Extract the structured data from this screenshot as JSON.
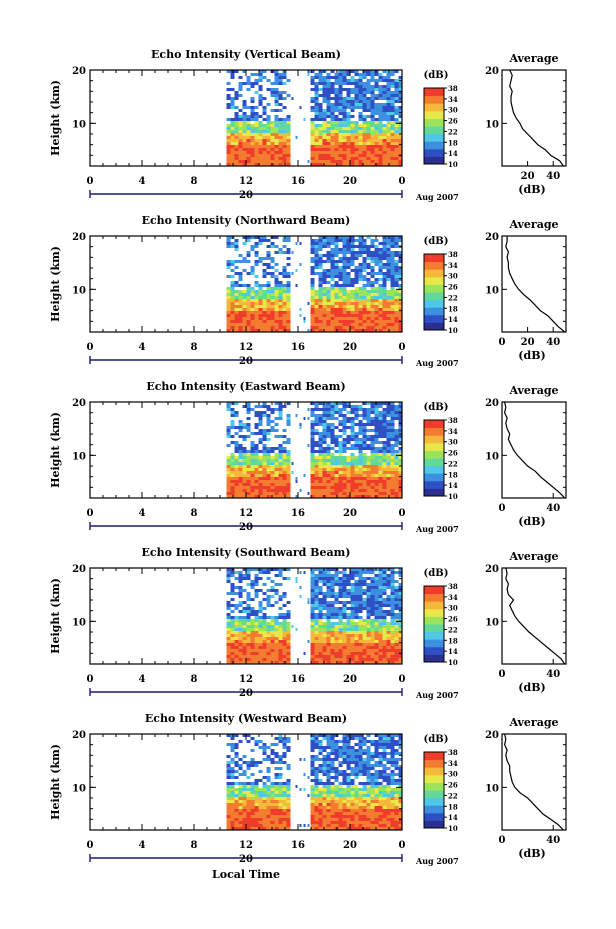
{
  "figure": {
    "xlabel": "Local Time",
    "date_label": "Aug 2007",
    "colorbar_unit": "(dB)",
    "average_title": "Average",
    "average_xlabel": "(dB)"
  },
  "colormap": [
    "#2b2f8f",
    "#2f4fc4",
    "#3d8fe0",
    "#4fc7e8",
    "#62d89a",
    "#9be35a",
    "#e8e84a",
    "#f5b83a",
    "#f47c30",
    "#f03c2a"
  ],
  "chart_data": [
    {
      "type": "heatmap",
      "title": "Echo Intensity (Vertical Beam)",
      "ylabel": "Height (km)",
      "x_ticks": [
        "0",
        "4",
        "8",
        "12",
        "16",
        "20",
        "0"
      ],
      "x_day_label": "20",
      "xlim": [
        0,
        24
      ],
      "ylim": [
        2,
        20
      ],
      "y_ticks": [
        10,
        20
      ],
      "data_start_hour": 10.5,
      "gap_hours": [
        15.5,
        16.9
      ],
      "colorbar": {
        "unit": "(dB)",
        "ticks": [
          "10",
          "14",
          "18",
          "22",
          "26",
          "30",
          "34",
          "38"
        ],
        "range": [
          10,
          38
        ]
      },
      "average": {
        "title": "Average",
        "xlabel": "(dB)",
        "x_ticks": [
          "20",
          "40"
        ],
        "xlim": [
          0,
          50
        ],
        "height_km": [
          2,
          3,
          4,
          5,
          6,
          7,
          8,
          9,
          10,
          11,
          12,
          13,
          14,
          15,
          16,
          17,
          18,
          19,
          20
        ],
        "values_db": [
          48,
          45,
          38,
          34,
          28,
          24,
          20,
          16,
          14,
          11,
          9,
          8,
          7,
          7,
          8,
          6,
          7,
          8,
          6
        ]
      }
    },
    {
      "type": "heatmap",
      "title": "Echo Intensity (Northward Beam)",
      "ylabel": "Height (km)",
      "x_ticks": [
        "0",
        "4",
        "8",
        "12",
        "16",
        "20",
        "0"
      ],
      "x_day_label": "20",
      "xlim": [
        0,
        24
      ],
      "ylim": [
        2,
        20
      ],
      "y_ticks": [
        10,
        20
      ],
      "data_start_hour": 10.5,
      "gap_hours": [
        15.5,
        16.9
      ],
      "colorbar": {
        "unit": "(dB)",
        "ticks": [
          "10",
          "14",
          "18",
          "22",
          "26",
          "30",
          "34",
          "38"
        ],
        "range": [
          10,
          38
        ]
      },
      "average": {
        "title": "Average",
        "xlabel": "(dB)",
        "x_ticks": [
          "0",
          "20",
          "40"
        ],
        "xlim": [
          0,
          50
        ],
        "height_km": [
          2,
          3,
          4,
          5,
          6,
          7,
          8,
          9,
          10,
          11,
          12,
          13,
          14,
          15,
          16,
          17,
          18,
          19,
          20
        ],
        "values_db": [
          49,
          44,
          40,
          36,
          30,
          26,
          22,
          17,
          13,
          10,
          8,
          6,
          5,
          5,
          4,
          5,
          3,
          4,
          4
        ]
      }
    },
    {
      "type": "heatmap",
      "title": "Echo Intensity (Eastward Beam)",
      "ylabel": "Height (km)",
      "x_ticks": [
        "0",
        "4",
        "8",
        "12",
        "16",
        "20",
        "0"
      ],
      "x_day_label": "20",
      "xlim": [
        0,
        24
      ],
      "ylim": [
        2,
        20
      ],
      "y_ticks": [
        10,
        20
      ],
      "data_start_hour": 10.5,
      "gap_hours": [
        15.5,
        16.9
      ],
      "colorbar": {
        "unit": "(dB)",
        "ticks": [
          "10",
          "14",
          "18",
          "22",
          "26",
          "30",
          "34",
          "38"
        ],
        "range": [
          10,
          38
        ]
      },
      "average": {
        "title": "Average",
        "xlabel": "(dB)",
        "x_ticks": [
          "0",
          "40"
        ],
        "xlim": [
          0,
          50
        ],
        "height_km": [
          2,
          3,
          4,
          5,
          6,
          7,
          8,
          9,
          10,
          11,
          12,
          13,
          14,
          15,
          16,
          17,
          18,
          19,
          20
        ],
        "values_db": [
          49,
          45,
          40,
          35,
          30,
          26,
          20,
          16,
          12,
          9,
          7,
          5,
          6,
          4,
          3,
          4,
          2,
          3,
          2
        ]
      }
    },
    {
      "type": "heatmap",
      "title": "Echo Intensity (Southward Beam)",
      "ylabel": "Height (km)",
      "x_ticks": [
        "0",
        "4",
        "8",
        "12",
        "16",
        "20",
        "0"
      ],
      "x_day_label": "20",
      "xlim": [
        0,
        24
      ],
      "ylim": [
        2,
        20
      ],
      "y_ticks": [
        10,
        20
      ],
      "data_start_hour": 10.5,
      "gap_hours": [
        15.5,
        16.9
      ],
      "colorbar": {
        "unit": "(dB)",
        "ticks": [
          "10",
          "14",
          "18",
          "22",
          "26",
          "30",
          "34",
          "38"
        ],
        "range": [
          10,
          38
        ]
      },
      "average": {
        "title": "Average",
        "xlabel": "(dB)",
        "x_ticks": [
          "0",
          "40"
        ],
        "xlim": [
          0,
          50
        ],
        "height_km": [
          2,
          3,
          4,
          5,
          6,
          7,
          8,
          9,
          10,
          11,
          12,
          13,
          14,
          15,
          16,
          17,
          18,
          19,
          20
        ],
        "values_db": [
          49,
          46,
          41,
          36,
          31,
          26,
          21,
          17,
          13,
          10,
          8,
          6,
          9,
          5,
          4,
          5,
          3,
          4,
          3
        ]
      }
    },
    {
      "type": "heatmap",
      "title": "Echo Intensity (Westward Beam)",
      "ylabel": "Height (km)",
      "x_ticks": [
        "0",
        "4",
        "8",
        "12",
        "16",
        "20",
        "0"
      ],
      "x_day_label": "20",
      "xlim": [
        0,
        24
      ],
      "ylim": [
        2,
        20
      ],
      "y_ticks": [
        10,
        20
      ],
      "data_start_hour": 10.5,
      "gap_hours": [
        15.5,
        16.9
      ],
      "colorbar": {
        "unit": "(dB)",
        "ticks": [
          "10",
          "14",
          "18",
          "22",
          "26",
          "30",
          "34",
          "38"
        ],
        "range": [
          10,
          38
        ]
      },
      "average": {
        "title": "Average",
        "xlabel": "(dB)",
        "x_ticks": [
          "0",
          "40"
        ],
        "xlim": [
          0,
          50
        ],
        "height_km": [
          2,
          3,
          4,
          5,
          6,
          7,
          8,
          9,
          10,
          11,
          12,
          13,
          14,
          15,
          16,
          17,
          18,
          19,
          20
        ],
        "values_db": [
          48,
          44,
          38,
          32,
          28,
          24,
          20,
          14,
          10,
          8,
          7,
          6,
          6,
          4,
          3,
          4,
          2,
          3,
          2
        ]
      }
    }
  ]
}
